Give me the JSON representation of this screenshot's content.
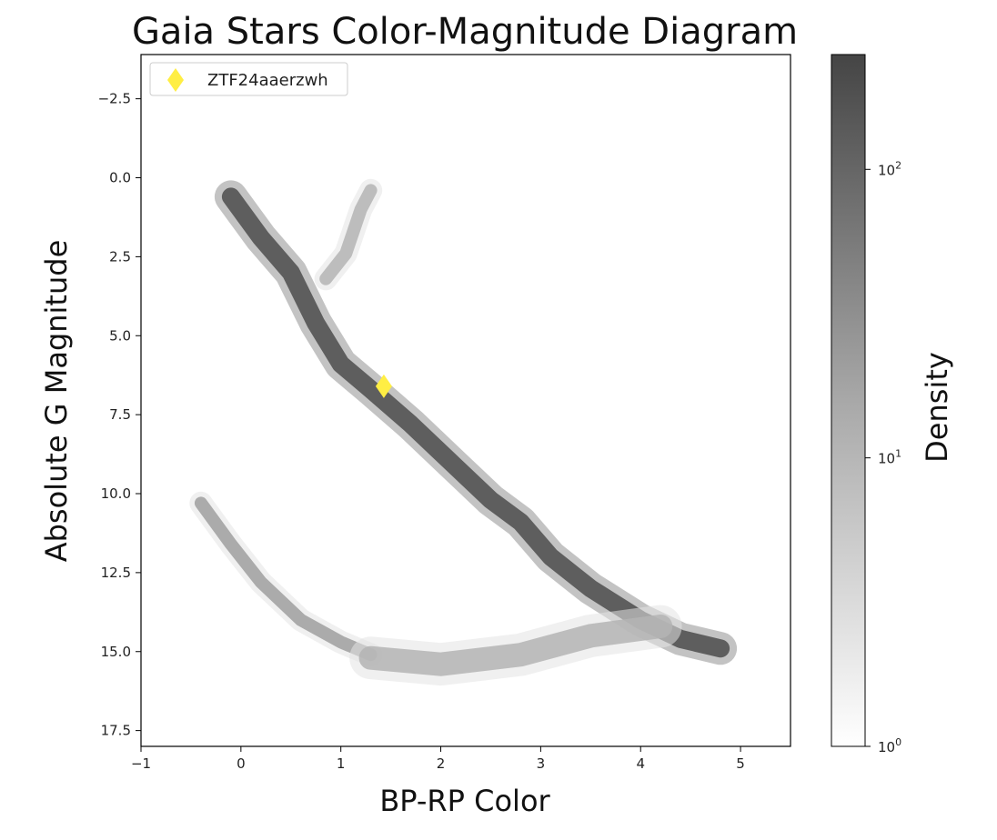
{
  "chart_data": {
    "type": "heatmap",
    "title": "Gaia Stars Color-Magnitude Diagram",
    "xlabel": "BP-RP Color",
    "ylabel": "Absolute G Magnitude",
    "xlim": [
      -1,
      5.5
    ],
    "ylim": [
      18.0,
      -3.9
    ],
    "y_inverted": true,
    "x_ticks": [
      {
        "value": -1,
        "label": "−1"
      },
      {
        "value": 0,
        "label": "0"
      },
      {
        "value": 1,
        "label": "1"
      },
      {
        "value": 2,
        "label": "2"
      },
      {
        "value": 3,
        "label": "3"
      },
      {
        "value": 4,
        "label": "4"
      },
      {
        "value": 5,
        "label": "5"
      }
    ],
    "y_ticks": [
      {
        "value": -2.5,
        "label": "−2.5"
      },
      {
        "value": 0.0,
        "label": "0.0"
      },
      {
        "value": 2.5,
        "label": "2.5"
      },
      {
        "value": 5.0,
        "label": "5.0"
      },
      {
        "value": 7.5,
        "label": "7.5"
      },
      {
        "value": 10.0,
        "label": "10.0"
      },
      {
        "value": 12.5,
        "label": "12.5"
      },
      {
        "value": 15.0,
        "label": "15.0"
      },
      {
        "value": 17.5,
        "label": "17.5"
      }
    ],
    "colormap": "Greys",
    "grid": false,
    "colorbar": {
      "label": "Density",
      "scale": "log",
      "range": [
        1,
        250
      ],
      "ticks": [
        {
          "value": 1,
          "base": "10",
          "exp": "0"
        },
        {
          "value": 10,
          "base": "10",
          "exp": "1"
        },
        {
          "value": 100,
          "base": "10",
          "exp": "2"
        }
      ]
    },
    "density_features": [
      {
        "name": "main-sequence",
        "points": [
          [
            -0.1,
            0.6
          ],
          [
            0.2,
            1.9
          ],
          [
            0.5,
            3.0
          ],
          [
            0.75,
            4.6
          ],
          [
            1.0,
            5.9
          ],
          [
            1.3,
            6.7
          ],
          [
            1.7,
            7.8
          ],
          [
            2.1,
            9.0
          ],
          [
            2.5,
            10.2
          ],
          [
            2.8,
            10.9
          ],
          [
            3.1,
            12.0
          ],
          [
            3.5,
            13.0
          ],
          [
            4.0,
            14.0
          ],
          [
            4.4,
            14.6
          ],
          [
            4.8,
            14.9
          ]
        ],
        "peak": 180
      },
      {
        "name": "giant-branch",
        "points": [
          [
            0.85,
            3.2
          ],
          [
            1.05,
            2.4
          ],
          [
            1.2,
            1.0
          ],
          [
            1.3,
            0.4
          ]
        ],
        "peak": 8
      },
      {
        "name": "white-dwarf-sequence",
        "points": [
          [
            -0.4,
            10.3
          ],
          [
            -0.1,
            11.6
          ],
          [
            0.2,
            12.8
          ],
          [
            0.6,
            14.0
          ],
          [
            1.0,
            14.7
          ],
          [
            1.3,
            15.1
          ]
        ],
        "peak": 15
      },
      {
        "name": "faint-bridge",
        "points": [
          [
            1.3,
            15.2
          ],
          [
            2.0,
            15.4
          ],
          [
            2.8,
            15.1
          ],
          [
            3.5,
            14.5
          ],
          [
            4.2,
            14.2
          ]
        ],
        "peak": 8
      }
    ],
    "series": [
      {
        "name": "ZTF24aaerzwh",
        "type": "scatter",
        "marker": "diamond",
        "color": "#ffee44",
        "points": [
          {
            "x": 1.43,
            "y": 6.6
          }
        ]
      }
    ],
    "legend": {
      "location": "upper-left"
    }
  }
}
